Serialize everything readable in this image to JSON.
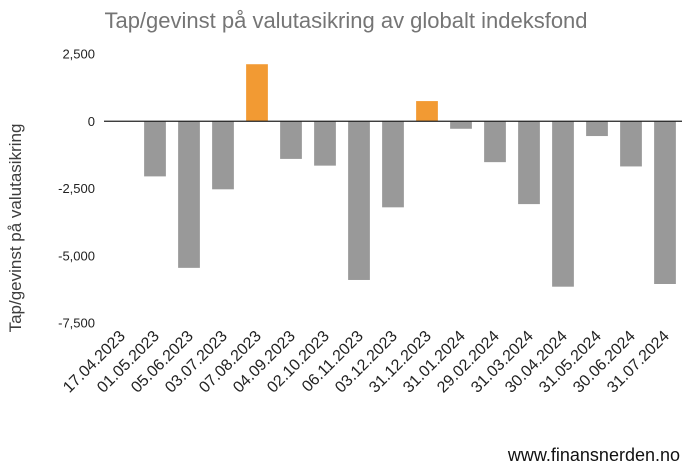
{
  "chart_data": {
    "type": "bar",
    "title": "Tap/gevinst på valutasikring av globalt indeksfond",
    "xlabel": "",
    "ylabel": "Tap/gevinst på valutasikring",
    "ylim": [
      -7500,
      2500
    ],
    "yticks": [
      2500,
      0,
      -2500,
      -5000,
      -7500
    ],
    "ytick_labels": [
      "2,500",
      "0",
      "-2,500",
      "-5,000",
      "-7,500"
    ],
    "categories": [
      "17.04.2023",
      "01.05.2023",
      "05.06.2023",
      "03.07.2023",
      "07.08.2023",
      "04.09.2023",
      "02.10.2023",
      "06.11.2023",
      "03.12.2023",
      "31.12.2023",
      "31.01.2024",
      "29.02.2024",
      "31.03.2024",
      "30.04.2024",
      "31.05.2024",
      "30.06.2024",
      "31.07.2024"
    ],
    "values": [
      0,
      -2050,
      -5450,
      -2530,
      2120,
      -1400,
      -1650,
      -5900,
      -3200,
      750,
      -280,
      -1520,
      -3080,
      -6150,
      -550,
      -1680,
      -6050
    ],
    "colors": {
      "positive": "#f29a33",
      "negative": "#999999",
      "zero_line": "#222222"
    },
    "grid": false,
    "legend": "none"
  },
  "watermark": "www.finansnerden.no"
}
